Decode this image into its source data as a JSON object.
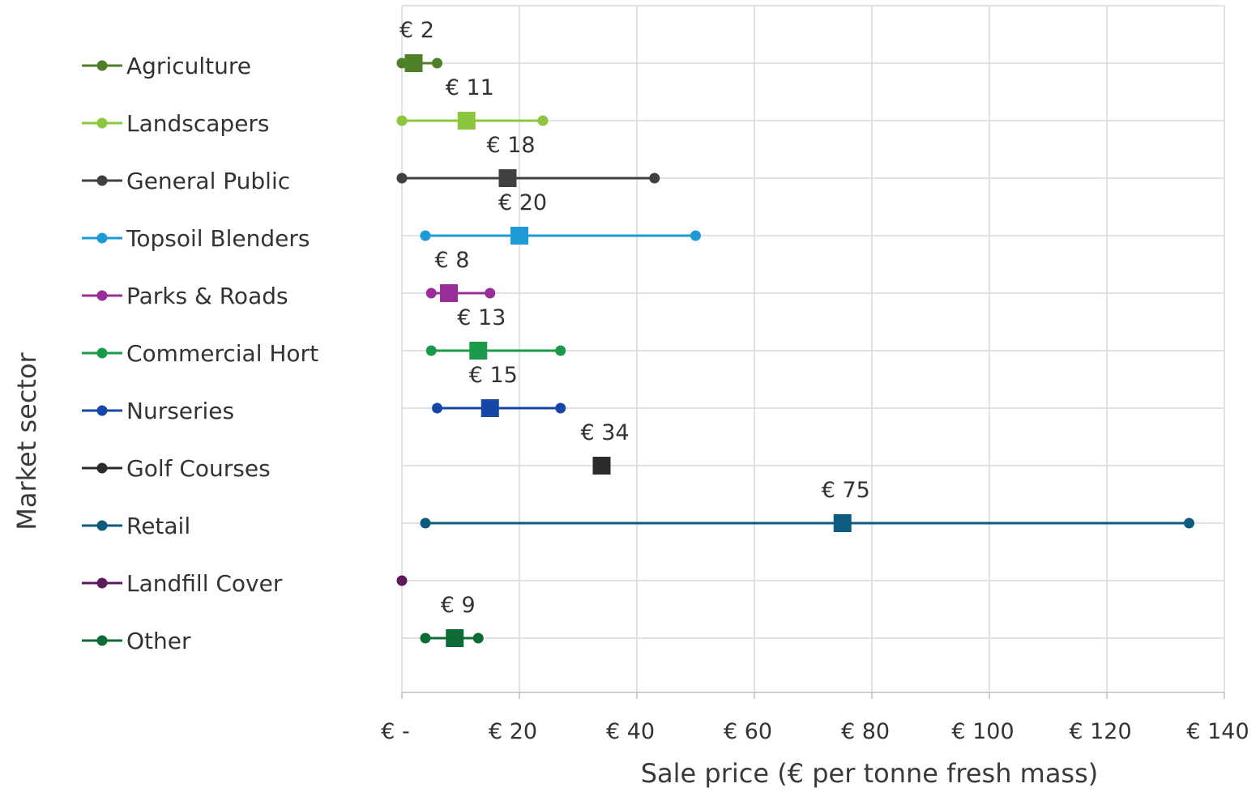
{
  "chart_data": {
    "type": "range",
    "xlabel": "Sale price (€ per tonne fresh mass)",
    "ylabel": "Market sector",
    "xlim": [
      0,
      140
    ],
    "x_ticks": [
      0,
      20,
      40,
      60,
      80,
      100,
      120,
      140
    ],
    "x_tick_labels": [
      "€ -",
      "€ 20",
      "€ 40",
      "€ 60",
      "€ 80",
      "€ 100",
      "€ 120",
      "€ 140"
    ],
    "grid": true,
    "legend_position": "left",
    "series": [
      {
        "name": "Agriculture",
        "color": "#4f7f28",
        "min": 0,
        "mean": 2,
        "max": 6,
        "label": "€ 2"
      },
      {
        "name": "Landscapers",
        "color": "#8cc63f",
        "min": 0,
        "mean": 11,
        "max": 24,
        "label": "€ 11"
      },
      {
        "name": "General Public",
        "color": "#404040",
        "min": 0,
        "mean": 18,
        "max": 43,
        "label": "€ 18"
      },
      {
        "name": "Topsoil Blenders",
        "color": "#1e9ad6",
        "min": 4,
        "mean": 20,
        "max": 50,
        "label": "€ 20"
      },
      {
        "name": "Parks & Roads",
        "color": "#9b2d9b",
        "min": 5,
        "mean": 8,
        "max": 15,
        "label": "€ 8"
      },
      {
        "name": "Commercial Hort",
        "color": "#1b9b4a",
        "min": 5,
        "mean": 13,
        "max": 27,
        "label": "€ 13"
      },
      {
        "name": "Nurseries",
        "color": "#1747a6",
        "min": 6,
        "mean": 15,
        "max": 27,
        "label": "€ 15"
      },
      {
        "name": "Golf Courses",
        "color": "#2b2b2b",
        "min": null,
        "mean": 34,
        "max": null,
        "label": "€ 34"
      },
      {
        "name": "Retail",
        "color": "#0e5b80",
        "min": 4,
        "mean": 75,
        "max": 134,
        "label": "€ 75"
      },
      {
        "name": "Landfill Cover",
        "color": "#5c1a5c",
        "min": 0,
        "mean": 0,
        "max": 0,
        "label": ""
      },
      {
        "name": "Other",
        "color": "#0d6b35",
        "min": 4,
        "mean": 9,
        "max": 13,
        "label": "€ 9"
      }
    ]
  }
}
